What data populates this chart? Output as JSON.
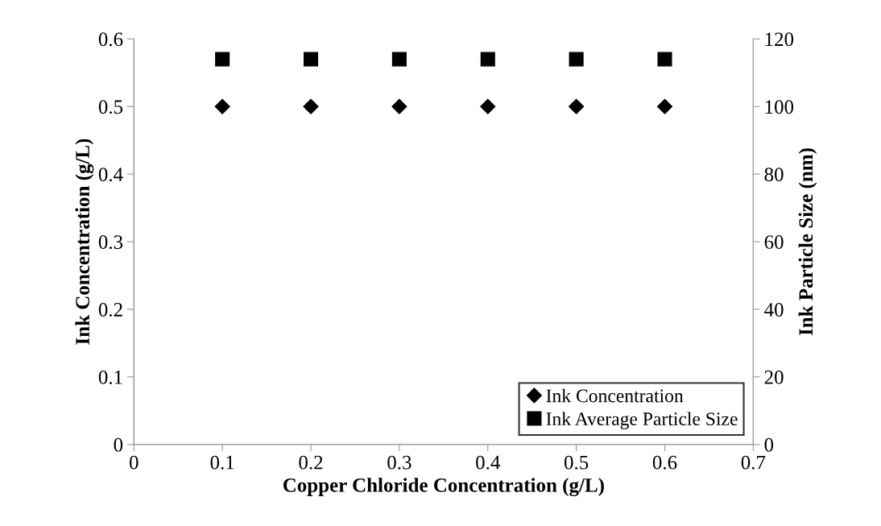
{
  "chart_data": {
    "type": "scatter",
    "xlabel": "Copper Chloride Concentration (g/L)",
    "ylabel": "Ink Concentration (g/L)",
    "y2label": "Ink Particle Size (nm)",
    "x": [
      0.1,
      0.2,
      0.3,
      0.4,
      0.5,
      0.6
    ],
    "series": [
      {
        "name": "Ink Concentration",
        "color": "#000000",
        "marker": "diamond",
        "values": [
          0.5,
          0.5,
          0.5,
          0.5,
          0.5,
          0.5
        ],
        "errors": [
          null,
          0.005,
          null,
          0.003,
          0.005,
          0.003
        ]
      },
      {
        "name": "Ink Average Particle Size",
        "color": "#000000",
        "marker": "square",
        "axis": "y2",
        "values": [
          114,
          114,
          114,
          114,
          114,
          114
        ]
      }
    ],
    "xlim": [
      0,
      0.7
    ],
    "xticks": [
      0,
      0.1,
      0.2,
      0.3,
      0.4,
      0.5,
      0.6,
      0.7
    ],
    "ylim": [
      0,
      0.6
    ],
    "yticks": [
      0,
      0.1,
      0.2,
      0.3,
      0.4,
      0.5,
      0.6
    ],
    "y2lim": [
      0,
      120
    ],
    "y2ticks": [
      0,
      20,
      40,
      60,
      80,
      100,
      120
    ],
    "grid": false,
    "legend": "bottom right"
  }
}
